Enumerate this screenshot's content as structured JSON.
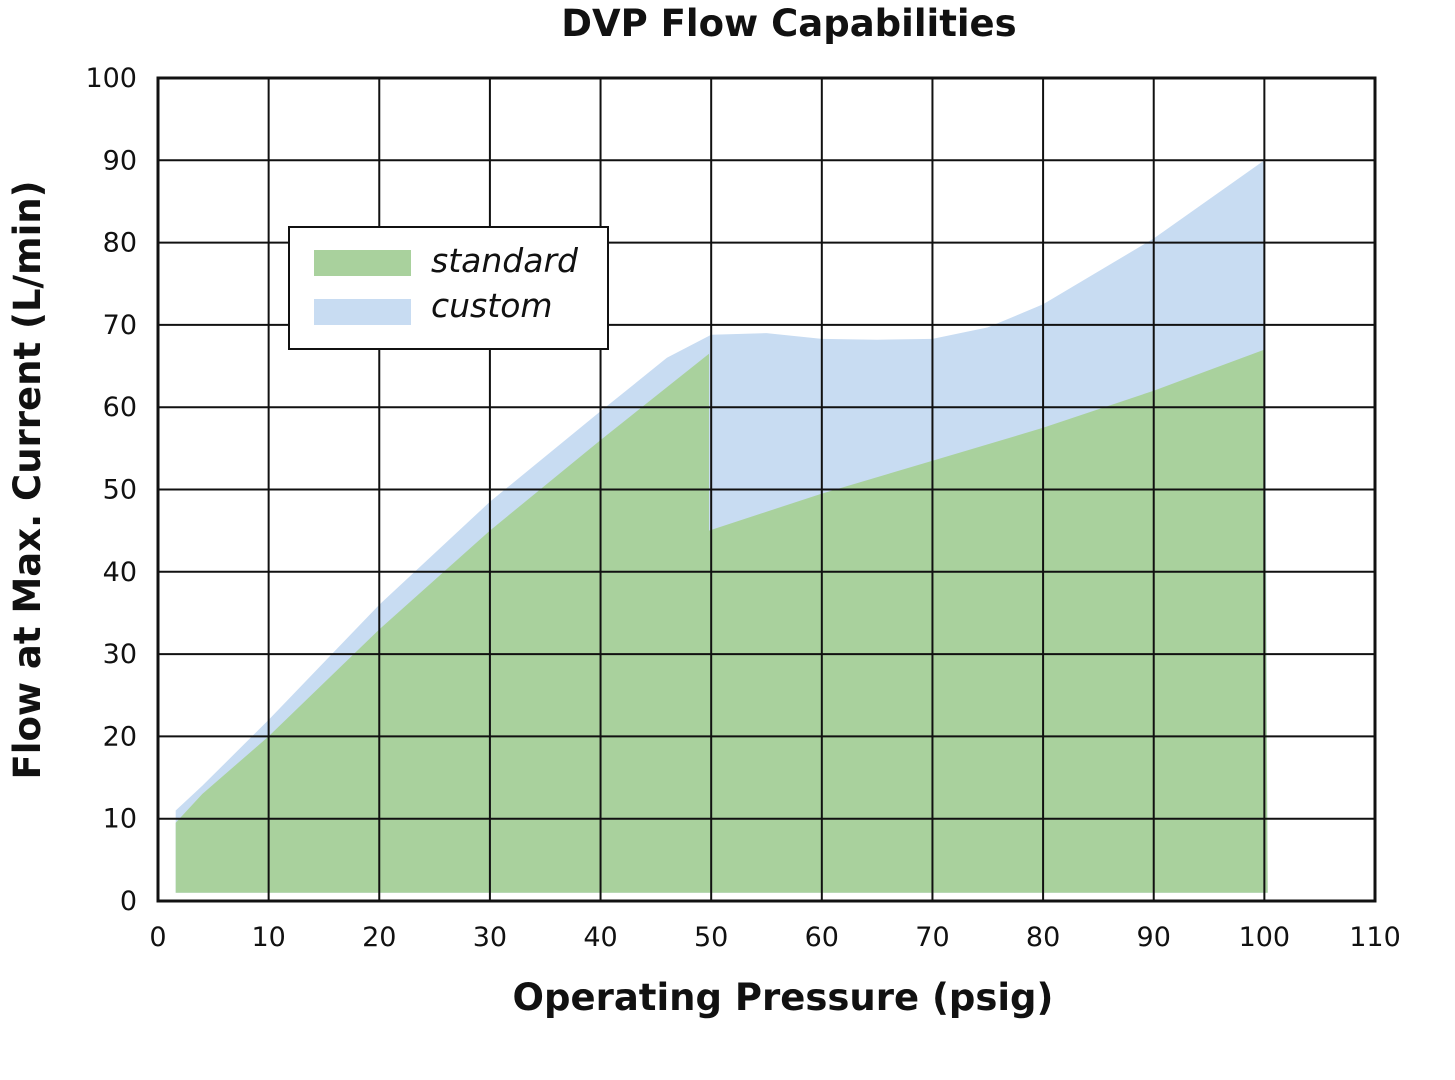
{
  "chart_data": {
    "type": "area",
    "title": "DVP Flow Capabilities",
    "xlabel": "Operating Pressure (psig)",
    "ylabel": "Flow at Max. Current (L/min)",
    "xlim": [
      0,
      110
    ],
    "ylim": [
      0,
      100
    ],
    "xticks": [
      "0",
      "10",
      "20",
      "30",
      "40",
      "50",
      "60",
      "70",
      "80",
      "90",
      "100",
      "110"
    ],
    "yticks": [
      "0",
      "10",
      "20",
      "30",
      "40",
      "50",
      "60",
      "70",
      "80",
      "90",
      "100"
    ],
    "grid": true,
    "legend_position": "top-left",
    "series": [
      {
        "name": "custom",
        "color": "#c8dcf2",
        "points": [
          [
            1.6,
            1
          ],
          [
            1.6,
            11
          ],
          [
            4,
            14
          ],
          [
            10,
            22
          ],
          [
            20,
            36
          ],
          [
            30,
            48.5
          ],
          [
            40,
            59.5
          ],
          [
            46,
            66
          ],
          [
            50,
            68.8
          ],
          [
            55,
            69
          ],
          [
            60,
            68.3
          ],
          [
            65,
            68.2
          ],
          [
            70,
            68.3
          ],
          [
            75,
            69.7
          ],
          [
            80,
            72.5
          ],
          [
            90,
            80.5
          ],
          [
            100,
            90
          ],
          [
            100.3,
            1
          ]
        ]
      },
      {
        "name": "standard",
        "color": "#a9d19d",
        "points": [
          [
            1.6,
            1
          ],
          [
            1.6,
            9.5
          ],
          [
            4,
            13
          ],
          [
            10,
            20
          ],
          [
            20,
            33
          ],
          [
            30,
            45
          ],
          [
            40,
            56
          ],
          [
            49.8,
            66.5
          ],
          [
            49.8,
            45
          ],
          [
            60,
            49.5
          ],
          [
            70,
            53.5
          ],
          [
            80,
            57.5
          ],
          [
            90,
            62
          ],
          [
            100,
            67
          ],
          [
            100.3,
            1
          ]
        ]
      }
    ]
  }
}
